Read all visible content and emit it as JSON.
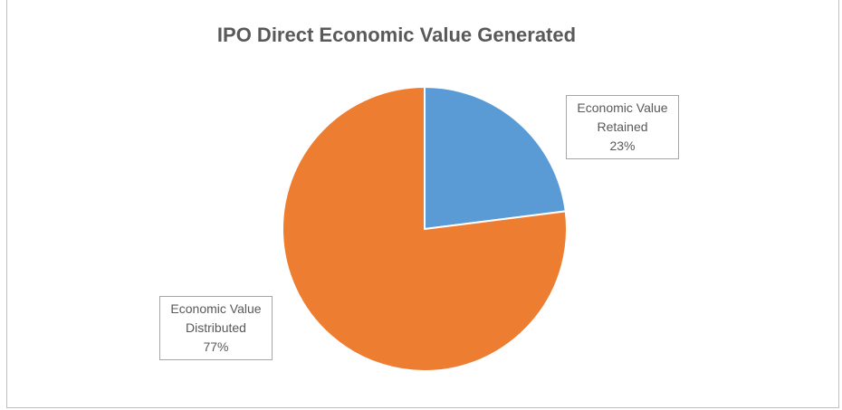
{
  "chart_data": {
    "type": "pie",
    "title": "IPO Direct Economic Value Generated",
    "categories": [
      "Economic Value Retained",
      "Economic Value Distributed"
    ],
    "values": [
      23,
      77
    ],
    "value_labels": [
      "23%",
      "77%"
    ],
    "colors": [
      "#5b9bd5",
      "#ed7d31"
    ]
  }
}
